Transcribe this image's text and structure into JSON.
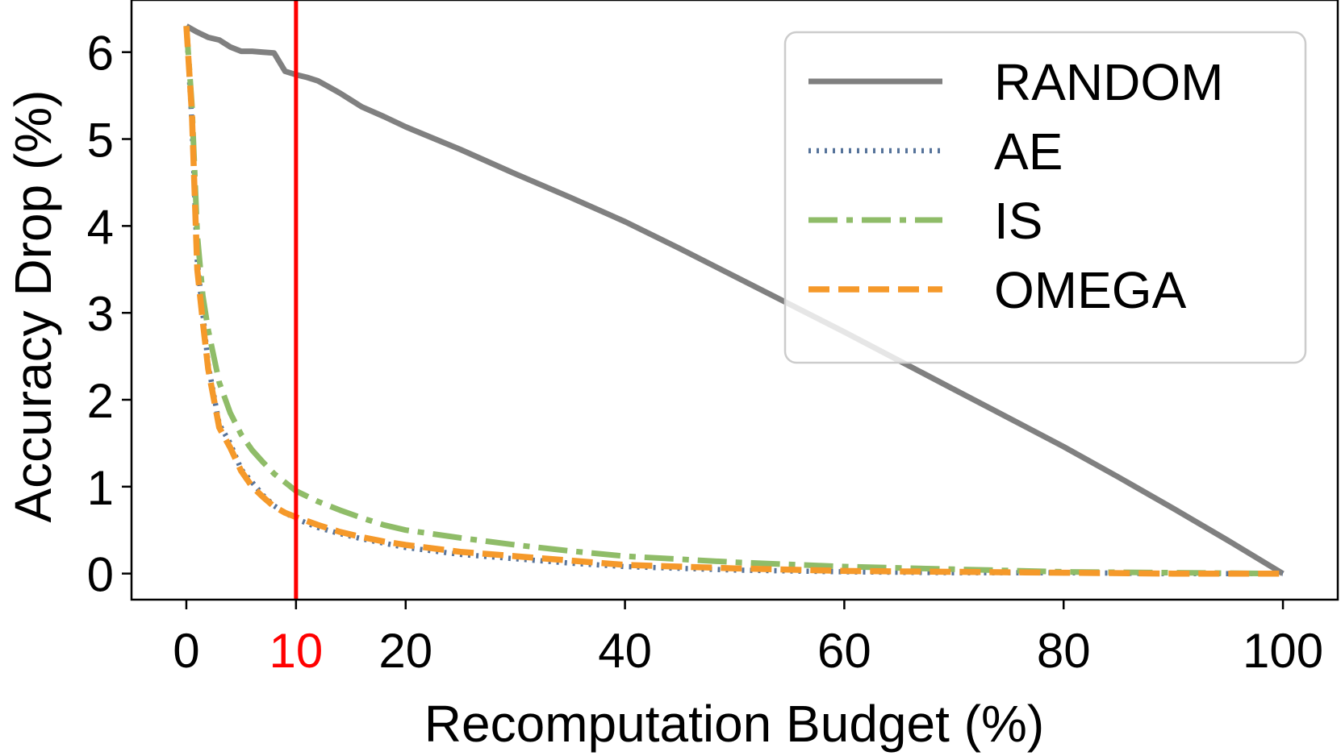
{
  "chart_data": {
    "type": "line",
    "title": "",
    "xlabel": "Recomputation Budget (%)",
    "ylabel": "Accuracy Drop (%)",
    "xlim": [
      -5,
      105
    ],
    "ylim": [
      -0.3,
      6.6
    ],
    "xticks": [
      {
        "value": 0,
        "label": "0",
        "color": "#000000"
      },
      {
        "value": 10,
        "label": "10",
        "color": "#ff0000"
      },
      {
        "value": 20,
        "label": "20",
        "color": "#000000"
      },
      {
        "value": 40,
        "label": "40",
        "color": "#000000"
      },
      {
        "value": 60,
        "label": "60",
        "color": "#000000"
      },
      {
        "value": 80,
        "label": "80",
        "color": "#000000"
      },
      {
        "value": 100,
        "label": "100",
        "color": "#000000"
      }
    ],
    "yticks": [
      {
        "value": 0,
        "label": "0"
      },
      {
        "value": 1,
        "label": "1"
      },
      {
        "value": 2,
        "label": "2"
      },
      {
        "value": 3,
        "label": "3"
      },
      {
        "value": 4,
        "label": "4"
      },
      {
        "value": 5,
        "label": "5"
      },
      {
        "value": 6,
        "label": "6"
      }
    ],
    "grid": false,
    "legend_position": "top-right",
    "vline": {
      "x": 10,
      "color": "#ff0000"
    },
    "series": [
      {
        "name": "RANDOM",
        "color": "#808080",
        "style": "solid",
        "x": [
          0,
          1,
          2,
          3,
          4,
          5,
          6,
          7,
          8,
          9,
          10,
          11,
          12,
          13,
          14,
          15,
          16,
          18,
          20,
          25,
          30,
          35,
          40,
          45,
          50,
          55,
          60,
          65,
          70,
          75,
          80,
          85,
          90,
          95,
          100
        ],
        "y": [
          6.3,
          6.23,
          6.17,
          6.14,
          6.06,
          6.01,
          6.01,
          6.0,
          5.99,
          5.78,
          5.74,
          5.71,
          5.67,
          5.6,
          5.53,
          5.45,
          5.37,
          5.26,
          5.14,
          4.88,
          4.6,
          4.33,
          4.05,
          3.74,
          3.42,
          3.1,
          2.78,
          2.45,
          2.12,
          1.79,
          1.46,
          1.11,
          0.75,
          0.38,
          0.0
        ]
      },
      {
        "name": "AE",
        "color": "#56739a",
        "style": "dotted",
        "x": [
          0,
          0.5,
          1,
          1.5,
          2,
          3,
          4,
          5,
          6,
          7,
          8,
          9,
          10,
          12,
          14,
          16,
          18,
          20,
          25,
          30,
          35,
          40,
          50,
          60,
          70,
          80,
          90,
          100
        ],
        "y": [
          6.3,
          5.2,
          3.6,
          3.0,
          2.4,
          1.72,
          1.5,
          1.2,
          1.05,
          0.9,
          0.78,
          0.7,
          0.63,
          0.53,
          0.46,
          0.4,
          0.35,
          0.3,
          0.22,
          0.17,
          0.12,
          0.08,
          0.04,
          0.02,
          0.01,
          0.01,
          0.0,
          0.0
        ]
      },
      {
        "name": "IS",
        "color": "#8fbc68",
        "style": "dashdot",
        "x": [
          0,
          0.5,
          1,
          1.5,
          2,
          3,
          4,
          5,
          6,
          7,
          8,
          9,
          10,
          12,
          14,
          16,
          18,
          20,
          25,
          30,
          35,
          40,
          50,
          60,
          70,
          80,
          90,
          100
        ],
        "y": [
          6.3,
          5.4,
          3.9,
          3.2,
          2.8,
          2.2,
          1.85,
          1.6,
          1.42,
          1.28,
          1.15,
          1.05,
          0.95,
          0.83,
          0.73,
          0.64,
          0.56,
          0.5,
          0.41,
          0.33,
          0.26,
          0.2,
          0.13,
          0.08,
          0.05,
          0.02,
          0.01,
          0.0
        ]
      },
      {
        "name": "OMEGA",
        "color": "#f5992a",
        "style": "dashed",
        "x": [
          0,
          0.5,
          1,
          1.5,
          2,
          3,
          4,
          5,
          6,
          7,
          8,
          9,
          10,
          12,
          14,
          16,
          18,
          20,
          25,
          30,
          35,
          40,
          50,
          60,
          70,
          80,
          90,
          100
        ],
        "y": [
          6.3,
          5.3,
          3.5,
          2.9,
          2.35,
          1.68,
          1.45,
          1.18,
          1.0,
          0.88,
          0.77,
          0.7,
          0.65,
          0.56,
          0.48,
          0.42,
          0.37,
          0.33,
          0.25,
          0.2,
          0.15,
          0.1,
          0.06,
          0.03,
          0.02,
          0.01,
          0.0,
          0.0
        ]
      }
    ]
  }
}
